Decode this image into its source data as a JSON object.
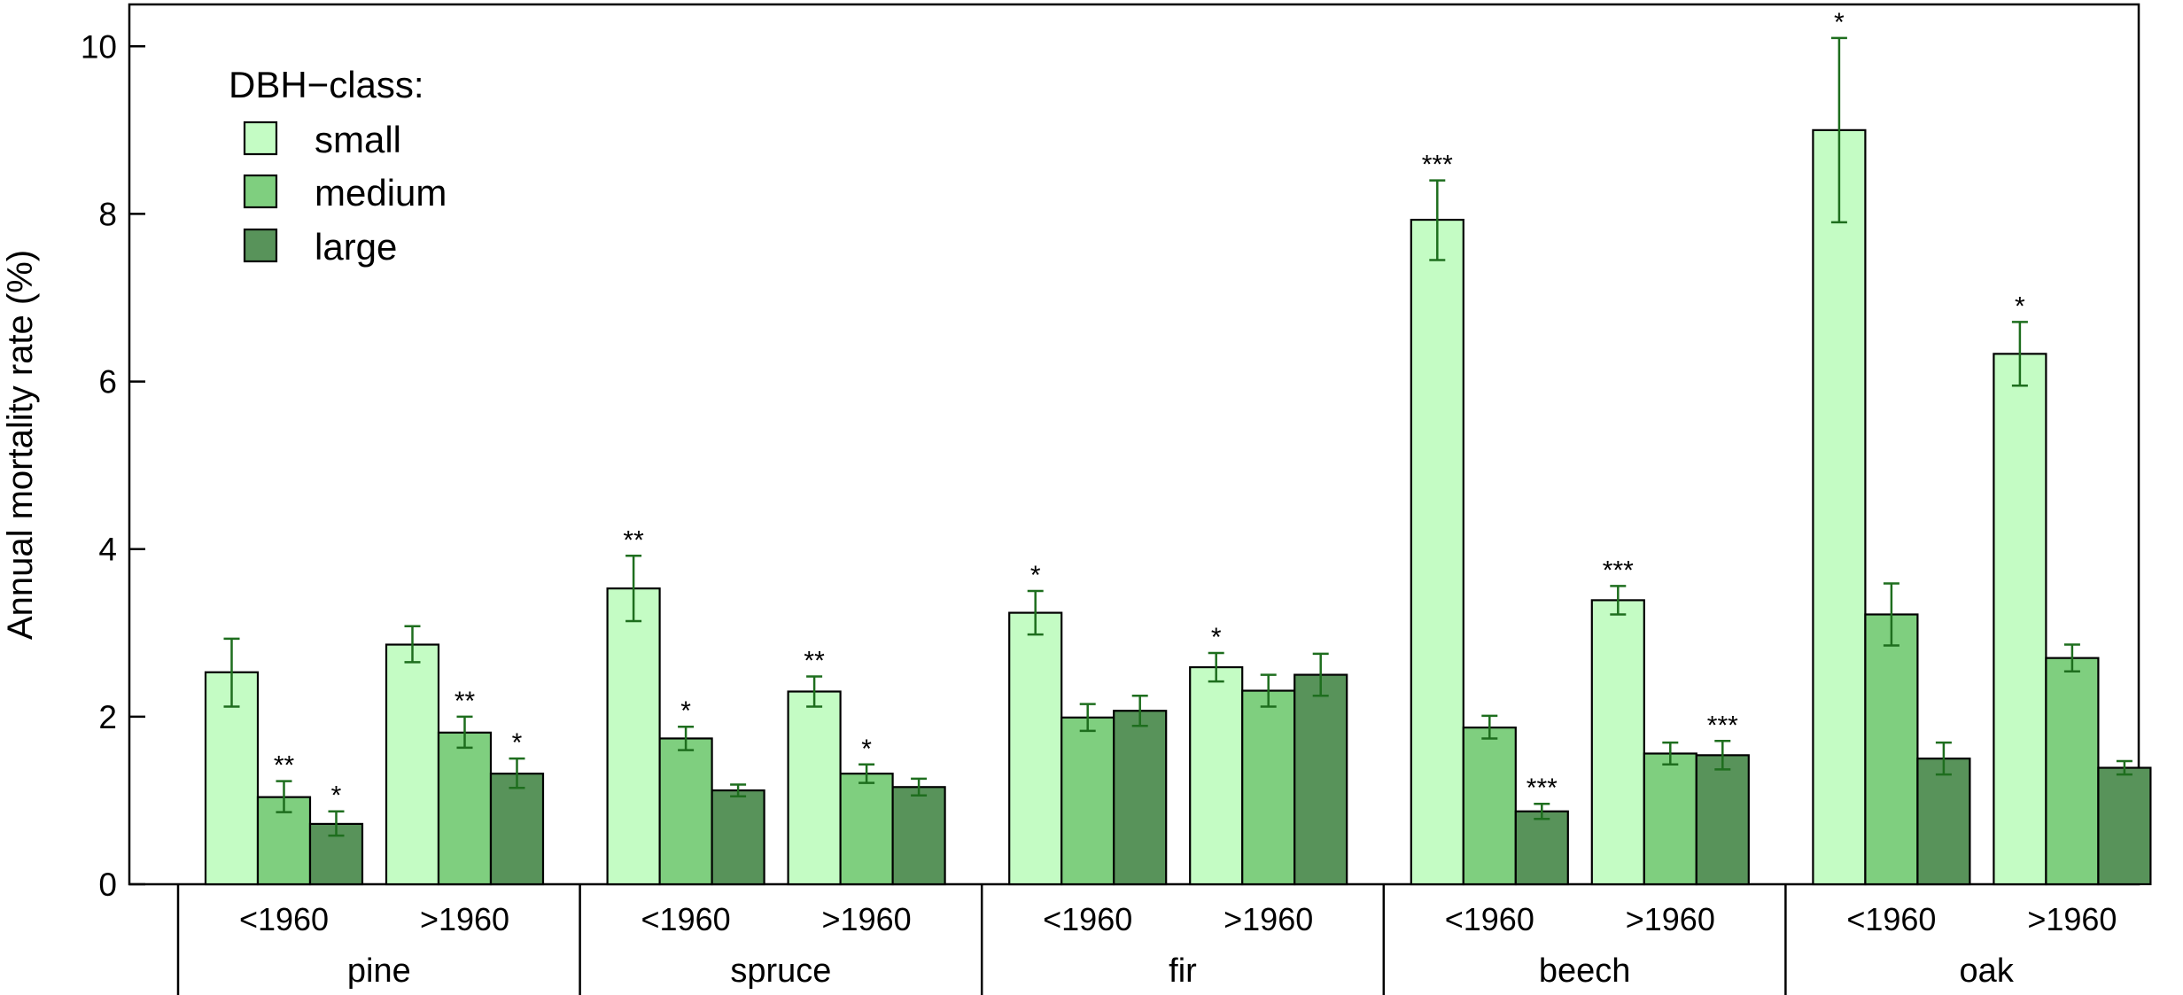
{
  "chart_data": {
    "type": "bar",
    "ylabel": "Annual mortality rate (%)",
    "ylim": [
      0,
      10.5
    ],
    "yticks": [
      "0",
      "2",
      "4",
      "6",
      "8",
      "10"
    ],
    "ytick_values": [
      0,
      2,
      4,
      6,
      8,
      10
    ],
    "grid": false,
    "legend": {
      "title": "DBH−class:",
      "placement": "top-left",
      "entries": [
        "small",
        "medium",
        "large"
      ]
    },
    "series_colors": [
      "#c4fcc4",
      "#7fcf7f",
      "#58935a"
    ],
    "error_bar_color": "#1e6e1e",
    "groups": [
      {
        "species": "pine",
        "periods": [
          {
            "label": "<1960",
            "bars": [
              {
                "value": 2.53,
                "lo": 2.12,
                "hi": 2.93,
                "sig": ""
              },
              {
                "value": 1.04,
                "lo": 0.86,
                "hi": 1.23,
                "sig": "**"
              },
              {
                "value": 0.72,
                "lo": 0.58,
                "hi": 0.87,
                "sig": "*"
              }
            ]
          },
          {
            "label": ">1960",
            "bars": [
              {
                "value": 2.86,
                "lo": 2.65,
                "hi": 3.08,
                "sig": ""
              },
              {
                "value": 1.81,
                "lo": 1.63,
                "hi": 2.0,
                "sig": "**"
              },
              {
                "value": 1.32,
                "lo": 1.15,
                "hi": 1.5,
                "sig": "*"
              }
            ]
          }
        ]
      },
      {
        "species": "spruce",
        "periods": [
          {
            "label": "<1960",
            "bars": [
              {
                "value": 3.53,
                "lo": 3.14,
                "hi": 3.92,
                "sig": "**"
              },
              {
                "value": 1.74,
                "lo": 1.6,
                "hi": 1.88,
                "sig": "*"
              },
              {
                "value": 1.12,
                "lo": 1.05,
                "hi": 1.19,
                "sig": ""
              }
            ]
          },
          {
            "label": ">1960",
            "bars": [
              {
                "value": 2.3,
                "lo": 2.12,
                "hi": 2.48,
                "sig": "**"
              },
              {
                "value": 1.32,
                "lo": 1.21,
                "hi": 1.43,
                "sig": "*"
              },
              {
                "value": 1.16,
                "lo": 1.06,
                "hi": 1.26,
                "sig": ""
              }
            ]
          }
        ]
      },
      {
        "species": "fir",
        "periods": [
          {
            "label": "<1960",
            "bars": [
              {
                "value": 3.24,
                "lo": 2.98,
                "hi": 3.5,
                "sig": "*"
              },
              {
                "value": 1.99,
                "lo": 1.83,
                "hi": 2.15,
                "sig": ""
              },
              {
                "value": 2.07,
                "lo": 1.89,
                "hi": 2.25,
                "sig": ""
              }
            ]
          },
          {
            "label": ">1960",
            "bars": [
              {
                "value": 2.59,
                "lo": 2.42,
                "hi": 2.76,
                "sig": "*"
              },
              {
                "value": 2.31,
                "lo": 2.12,
                "hi": 2.5,
                "sig": ""
              },
              {
                "value": 2.5,
                "lo": 2.25,
                "hi": 2.75,
                "sig": ""
              }
            ]
          }
        ]
      },
      {
        "species": "beech",
        "periods": [
          {
            "label": "<1960",
            "bars": [
              {
                "value": 7.93,
                "lo": 7.45,
                "hi": 8.4,
                "sig": "***"
              },
              {
                "value": 1.87,
                "lo": 1.74,
                "hi": 2.01,
                "sig": ""
              },
              {
                "value": 0.87,
                "lo": 0.78,
                "hi": 0.96,
                "sig": "***"
              }
            ]
          },
          {
            "label": ">1960",
            "bars": [
              {
                "value": 3.39,
                "lo": 3.22,
                "hi": 3.56,
                "sig": "***"
              },
              {
                "value": 1.56,
                "lo": 1.43,
                "hi": 1.69,
                "sig": ""
              },
              {
                "value": 1.54,
                "lo": 1.37,
                "hi": 1.71,
                "sig": "***"
              }
            ]
          }
        ]
      },
      {
        "species": "oak",
        "periods": [
          {
            "label": "<1960",
            "bars": [
              {
                "value": 9.0,
                "lo": 7.9,
                "hi": 10.1,
                "sig": "*"
              },
              {
                "value": 3.22,
                "lo": 2.85,
                "hi": 3.59,
                "sig": ""
              },
              {
                "value": 1.5,
                "lo": 1.31,
                "hi": 1.69,
                "sig": ""
              }
            ]
          },
          {
            "label": ">1960",
            "bars": [
              {
                "value": 6.33,
                "lo": 5.95,
                "hi": 6.71,
                "sig": "*"
              },
              {
                "value": 2.7,
                "lo": 2.54,
                "hi": 2.86,
                "sig": ""
              },
              {
                "value": 1.39,
                "lo": 1.31,
                "hi": 1.47,
                "sig": ""
              }
            ]
          }
        ]
      }
    ]
  }
}
